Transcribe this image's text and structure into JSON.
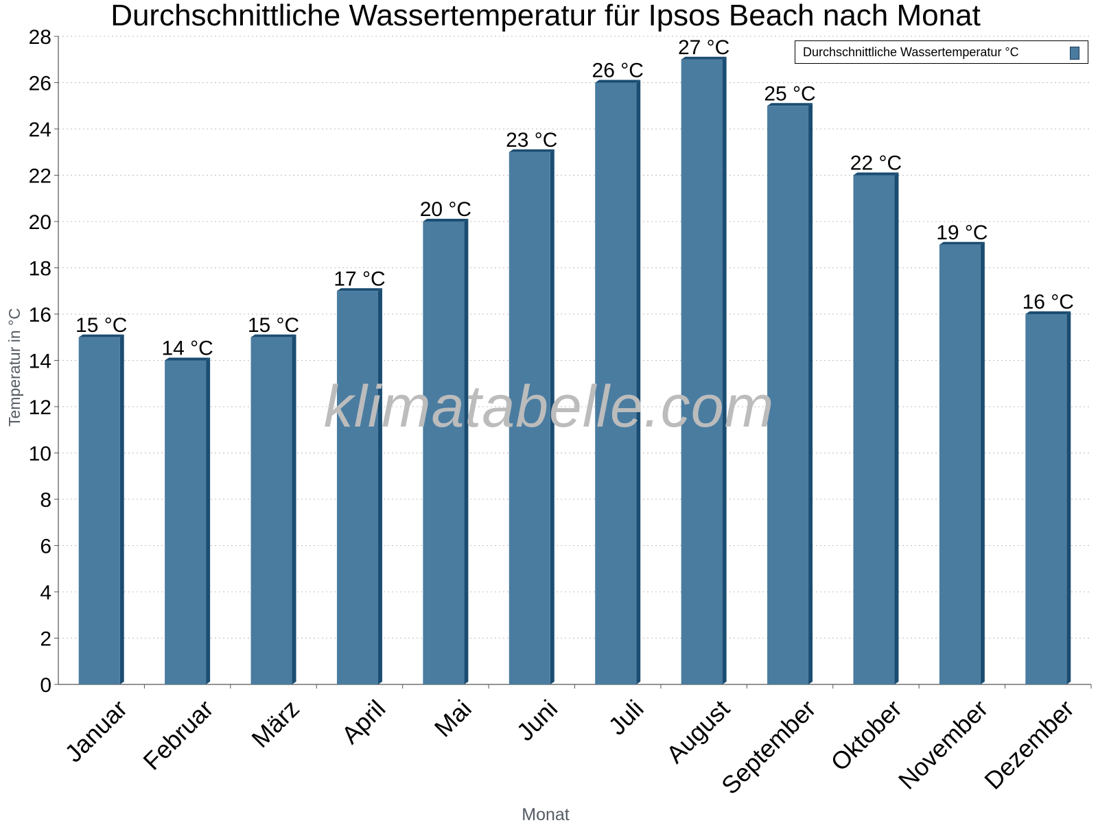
{
  "chart_data": {
    "type": "bar",
    "title": "Durchschnittliche Wassertemperatur für Ipsos Beach nach Monat",
    "xlabel": "Monat",
    "ylabel": "Temperatur in °C",
    "categories": [
      "Januar",
      "Februar",
      "März",
      "April",
      "Mai",
      "Juni",
      "Juli",
      "August",
      "September",
      "Oktober",
      "November",
      "Dezember"
    ],
    "series": [
      {
        "name": "Durchschnittliche Wassertemperatur °C",
        "values": [
          15,
          14,
          15,
          17,
          20,
          23,
          26,
          27,
          25,
          22,
          19,
          16
        ],
        "labels": [
          "15 °C",
          "14 °C",
          "15 °C",
          "17 °C",
          "20 °C",
          "23 °C",
          "26 °C",
          "27 °C",
          "25 °C",
          "22 °C",
          "19 °C",
          "16 °C"
        ]
      }
    ],
    "ylim": [
      0,
      28
    ],
    "yticks": [
      "0",
      "2",
      "4",
      "6",
      "8",
      "10",
      "12",
      "14",
      "16",
      "18",
      "20",
      "22",
      "24",
      "26",
      "28"
    ],
    "grid": true,
    "legend_position": "top-right",
    "colors": {
      "bar": "#4a7ca0",
      "bar_side": "#1b4d72",
      "grid": "#bbbbbb"
    }
  },
  "watermark": "klimatabelle.com"
}
